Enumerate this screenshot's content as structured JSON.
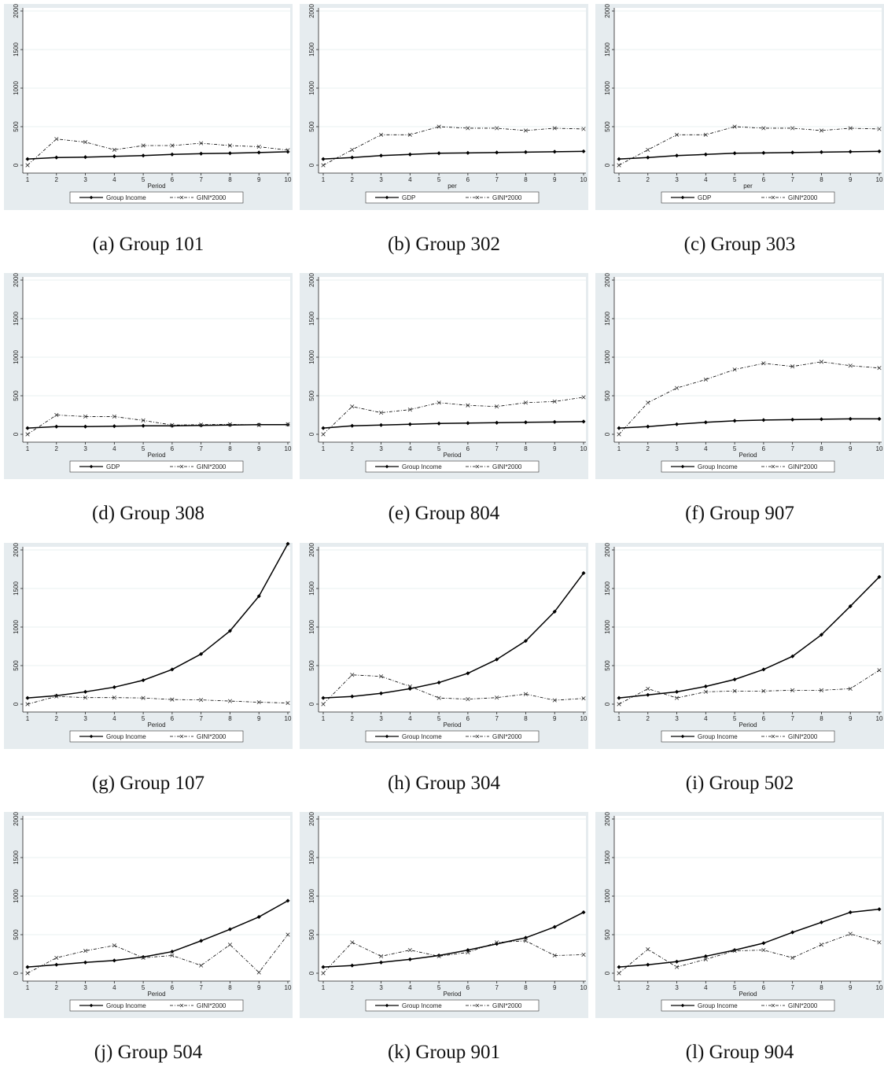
{
  "colors": {
    "panel_bg": "#e6ecef",
    "plot_bg": "#ffffff",
    "gridline": "#eaf0f2",
    "line": "#000000"
  },
  "chart_data": [
    {
      "caption": "(a) Group 101",
      "type": "line",
      "xlabel": "Period",
      "x": [
        1,
        2,
        3,
        4,
        5,
        6,
        7,
        8,
        9,
        10
      ],
      "ylim": [
        0,
        2000
      ],
      "yticks": [
        0,
        500,
        1000,
        1500,
        2000
      ],
      "series": [
        {
          "name": "Group Income",
          "style": "solid",
          "values": [
            80,
            100,
            105,
            115,
            125,
            140,
            150,
            155,
            165,
            175
          ]
        },
        {
          "name": "GINI*2000",
          "style": "dashed",
          "values": [
            0,
            340,
            300,
            200,
            255,
            255,
            285,
            255,
            240,
            195
          ]
        }
      ]
    },
    {
      "caption": "(b) Group 302",
      "type": "line",
      "xlabel": "per",
      "x": [
        1,
        2,
        3,
        4,
        5,
        6,
        7,
        8,
        9,
        10
      ],
      "ylim": [
        0,
        2000
      ],
      "yticks": [
        0,
        500,
        1000,
        1500,
        2000
      ],
      "series": [
        {
          "name": "GDP",
          "style": "solid",
          "values": [
            80,
            100,
            125,
            140,
            155,
            160,
            165,
            170,
            175,
            180
          ]
        },
        {
          "name": "GINI*2000",
          "style": "dashed",
          "values": [
            0,
            200,
            395,
            395,
            500,
            480,
            480,
            450,
            480,
            470
          ]
        }
      ]
    },
    {
      "caption": "(c) Group 303",
      "type": "line",
      "xlabel": "per",
      "x": [
        1,
        2,
        3,
        4,
        5,
        6,
        7,
        8,
        9,
        10
      ],
      "ylim": [
        0,
        2000
      ],
      "yticks": [
        0,
        500,
        1000,
        1500,
        2000
      ],
      "series": [
        {
          "name": "GDP",
          "style": "solid",
          "values": [
            80,
            100,
            125,
            140,
            155,
            160,
            165,
            170,
            175,
            180
          ]
        },
        {
          "name": "GINI*2000",
          "style": "dashed",
          "values": [
            0,
            200,
            395,
            395,
            500,
            480,
            480,
            450,
            480,
            470
          ]
        }
      ]
    },
    {
      "caption": "(d) Group 308",
      "type": "line",
      "xlabel": "Period",
      "x": [
        1,
        2,
        3,
        4,
        5,
        6,
        7,
        8,
        9,
        10
      ],
      "ylim": [
        0,
        2000
      ],
      "yticks": [
        0,
        500,
        1000,
        1500,
        2000
      ],
      "series": [
        {
          "name": "GDP",
          "style": "solid",
          "values": [
            80,
            100,
            100,
            105,
            110,
            110,
            115,
            120,
            125,
            125
          ]
        },
        {
          "name": "GINI*2000",
          "style": "dashed",
          "values": [
            0,
            250,
            230,
            230,
            180,
            120,
            125,
            130,
            120,
            130
          ]
        }
      ]
    },
    {
      "caption": "(e) Group 804",
      "type": "line",
      "xlabel": "Period",
      "x": [
        1,
        2,
        3,
        4,
        5,
        6,
        7,
        8,
        9,
        10
      ],
      "ylim": [
        0,
        2000
      ],
      "yticks": [
        0,
        500,
        1000,
        1500,
        2000
      ],
      "series": [
        {
          "name": "Group Income",
          "style": "solid",
          "values": [
            80,
            110,
            120,
            130,
            140,
            145,
            150,
            155,
            160,
            165
          ]
        },
        {
          "name": "GINI*2000",
          "style": "dashed",
          "values": [
            0,
            360,
            280,
            320,
            410,
            375,
            360,
            410,
            425,
            480
          ]
        }
      ]
    },
    {
      "caption": "(f) Group 907",
      "type": "line",
      "xlabel": "Period",
      "x": [
        1,
        2,
        3,
        4,
        5,
        6,
        7,
        8,
        9,
        10
      ],
      "ylim": [
        0,
        2000
      ],
      "yticks": [
        0,
        500,
        1000,
        1500,
        2000
      ],
      "series": [
        {
          "name": "Group Income",
          "style": "solid",
          "values": [
            80,
            100,
            130,
            155,
            175,
            185,
            190,
            195,
            200,
            200
          ]
        },
        {
          "name": "GINI*2000",
          "style": "dashed",
          "values": [
            0,
            410,
            600,
            710,
            840,
            920,
            880,
            940,
            890,
            860
          ]
        }
      ]
    },
    {
      "caption": "(g) Group 107",
      "type": "line",
      "xlabel": "Period",
      "x": [
        1,
        2,
        3,
        4,
        5,
        6,
        7,
        8,
        9,
        10
      ],
      "ylim": [
        0,
        2000
      ],
      "yticks": [
        0,
        500,
        1000,
        1500,
        2000
      ],
      "series": [
        {
          "name": "Group Income",
          "style": "solid",
          "values": [
            80,
            110,
            160,
            220,
            310,
            450,
            650,
            950,
            1400,
            2080
          ]
        },
        {
          "name": "GINI*2000",
          "style": "dashed",
          "values": [
            0,
            100,
            85,
            85,
            80,
            60,
            55,
            40,
            25,
            15
          ]
        }
      ]
    },
    {
      "caption": "(h) Group 304",
      "type": "line",
      "xlabel": "Period",
      "x": [
        1,
        2,
        3,
        4,
        5,
        6,
        7,
        8,
        9,
        10
      ],
      "ylim": [
        0,
        2000
      ],
      "yticks": [
        0,
        500,
        1000,
        1500,
        2000
      ],
      "series": [
        {
          "name": "Group Income",
          "style": "solid",
          "values": [
            80,
            100,
            140,
            200,
            280,
            400,
            580,
            820,
            1200,
            1700
          ]
        },
        {
          "name": "GINI*2000",
          "style": "dashed",
          "values": [
            0,
            380,
            360,
            230,
            80,
            65,
            85,
            130,
            50,
            75
          ]
        }
      ]
    },
    {
      "caption": "(i) Group 502",
      "type": "line",
      "xlabel": "Period",
      "x": [
        1,
        2,
        3,
        4,
        5,
        6,
        7,
        8,
        9,
        10
      ],
      "ylim": [
        0,
        2000
      ],
      "yticks": [
        0,
        500,
        1000,
        1500,
        2000
      ],
      "series": [
        {
          "name": "Group Income",
          "style": "solid",
          "values": [
            80,
            120,
            160,
            230,
            320,
            450,
            620,
            900,
            1270,
            1650
          ]
        },
        {
          "name": "GINI*2000",
          "style": "dashed",
          "values": [
            0,
            200,
            80,
            160,
            170,
            170,
            180,
            180,
            200,
            440
          ]
        }
      ]
    },
    {
      "caption": "(j) Group 504",
      "type": "line",
      "xlabel": "Period",
      "x": [
        1,
        2,
        3,
        4,
        5,
        6,
        7,
        8,
        9,
        10
      ],
      "ylim": [
        0,
        2000
      ],
      "yticks": [
        0,
        500,
        1000,
        1500,
        2000
      ],
      "series": [
        {
          "name": "Group Income",
          "style": "solid",
          "values": [
            80,
            110,
            140,
            165,
            210,
            280,
            420,
            570,
            730,
            940
          ]
        },
        {
          "name": "GINI*2000",
          "style": "dashed",
          "values": [
            0,
            200,
            290,
            360,
            200,
            230,
            100,
            370,
            10,
            500
          ]
        }
      ]
    },
    {
      "caption": "(k) Group 901",
      "type": "line",
      "xlabel": "Period",
      "x": [
        1,
        2,
        3,
        4,
        5,
        6,
        7,
        8,
        9,
        10
      ],
      "ylim": [
        0,
        2000
      ],
      "yticks": [
        0,
        500,
        1000,
        1500,
        2000
      ],
      "series": [
        {
          "name": "Group Income",
          "style": "solid",
          "values": [
            80,
            100,
            140,
            180,
            230,
            300,
            380,
            460,
            600,
            790
          ]
        },
        {
          "name": "GINI*2000",
          "style": "dashed",
          "values": [
            0,
            400,
            220,
            300,
            220,
            270,
            400,
            420,
            230,
            240
          ]
        }
      ]
    },
    {
      "caption": "(l) Group 904",
      "type": "line",
      "xlabel": "Period",
      "x": [
        1,
        2,
        3,
        4,
        5,
        6,
        7,
        8,
        9,
        10
      ],
      "ylim": [
        0,
        2000
      ],
      "yticks": [
        0,
        500,
        1000,
        1500,
        2000
      ],
      "series": [
        {
          "name": "Group Income",
          "style": "solid",
          "values": [
            80,
            110,
            150,
            220,
            300,
            390,
            530,
            660,
            790,
            830
          ]
        },
        {
          "name": "GINI*2000",
          "style": "dashed",
          "values": [
            0,
            310,
            80,
            180,
            290,
            300,
            200,
            370,
            510,
            400
          ]
        }
      ]
    }
  ]
}
